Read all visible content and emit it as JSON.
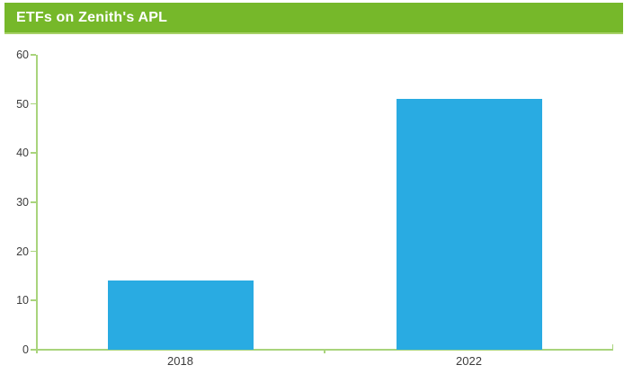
{
  "header": {
    "title": "ETFs on Zenith's APL",
    "bg_color": "#76b82a",
    "accent_strip_color": "#a6d166",
    "text_color": "#ffffff"
  },
  "chart_data": {
    "type": "bar",
    "title": "ETFs on Zenith's APL",
    "categories": [
      "2018",
      "2022"
    ],
    "values": [
      14,
      51
    ],
    "xlabel": "",
    "ylabel": "",
    "ylim": [
      0,
      60
    ],
    "yticks": [
      0,
      10,
      20,
      30,
      40,
      50,
      60
    ],
    "grid": false,
    "legend": "none",
    "bar_color": "#29abe2",
    "axis_color": "#a9d47c",
    "tick_label_color": "#3c3c3c"
  }
}
